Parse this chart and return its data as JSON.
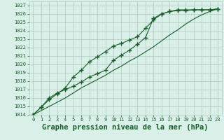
{
  "title": "Graphe pression niveau de la mer (hPa)",
  "bg_color": "#d8f0e8",
  "grid_color": "#b0c8c0",
  "line_color": "#1a5c2a",
  "xlim": [
    -0.5,
    23.5
  ],
  "ylim": [
    1014,
    1027.5
  ],
  "xticks": [
    0,
    1,
    2,
    3,
    4,
    5,
    6,
    7,
    8,
    9,
    10,
    11,
    12,
    13,
    14,
    15,
    16,
    17,
    18,
    19,
    20,
    21,
    22,
    23
  ],
  "yticks": [
    1014,
    1015,
    1016,
    1017,
    1018,
    1019,
    1020,
    1021,
    1022,
    1023,
    1024,
    1025,
    1026,
    1027
  ],
  "series": [
    [
      1014.0,
      1014.9,
      1016.0,
      1016.6,
      1017.0,
      1017.4,
      1017.9,
      1018.5,
      1018.9,
      1019.3,
      1020.5,
      1021.1,
      1021.7,
      1022.4,
      1023.2,
      1025.5,
      1026.0,
      1026.3,
      1026.5,
      1026.5,
      1026.5,
      1026.5,
      1026.5,
      1026.6
    ],
    [
      1014.0,
      1014.9,
      1015.8,
      1016.5,
      1017.2,
      1018.5,
      1019.3,
      1020.3,
      1020.9,
      1021.5,
      1022.2,
      1022.5,
      1022.9,
      1023.3,
      1024.3,
      1025.3,
      1026.0,
      1026.3,
      1026.4,
      1026.4,
      1026.5,
      1026.5,
      1026.5,
      1026.6
    ],
    [
      1014.0,
      1014.5,
      1015.0,
      1015.5,
      1016.0,
      1016.6,
      1017.2,
      1017.7,
      1018.2,
      1018.7,
      1019.3,
      1019.8,
      1020.4,
      1020.9,
      1021.5,
      1022.1,
      1022.8,
      1023.5,
      1024.1,
      1024.8,
      1025.4,
      1025.9,
      1026.3,
      1026.6
    ]
  ],
  "marker_series": [
    0,
    1
  ],
  "marker": "+",
  "markersize": 4,
  "markeredgewidth": 1.0,
  "linewidth": 0.8,
  "title_fontsize": 7.5,
  "tick_fontsize": 5.0,
  "tick_color": "#1a5c2a",
  "ylabel_right_padding": 2
}
